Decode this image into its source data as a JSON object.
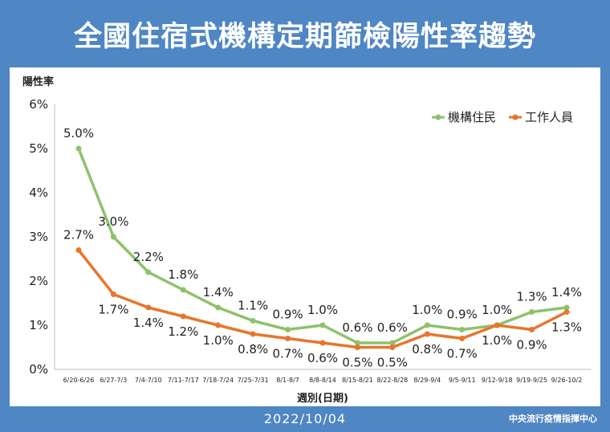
{
  "title": "全國住宿式機構定期篩檢陽性率趨勢",
  "footer": {
    "date": "2022/10/04",
    "source": "中央流行疫情指揮中心"
  },
  "colors": {
    "header": "#4f86c4",
    "resident": "#8dc26b",
    "staff": "#e8752b"
  },
  "chart_data": {
    "type": "line",
    "ylabel": "陽性率",
    "xlabel": "週別(日期)",
    "ylim": [
      0,
      6
    ],
    "yticks": [
      "0%",
      "1%",
      "2%",
      "3%",
      "4%",
      "5%",
      "6%"
    ],
    "categories": [
      "6/20-6/26",
      "6/27-7/3",
      "7/4-7/10",
      "7/11-7/17",
      "7/18-7/24",
      "7/25-7/31",
      "8/1-8/7",
      "8/8-8/14",
      "8/15-8/21",
      "8/22-8/28",
      "8/29-9/4",
      "9/5-9/11",
      "9/12-9/18",
      "9/19-9/25",
      "9/26-10/2"
    ],
    "legend_position": "top-right",
    "series": [
      {
        "name": "機構住民",
        "color": "#8dc26b",
        "values": [
          5.0,
          3.0,
          2.2,
          1.8,
          1.4,
          1.1,
          0.9,
          1.0,
          0.6,
          0.6,
          1.0,
          0.9,
          1.0,
          1.3,
          1.4
        ],
        "labels": [
          "5.0%",
          "3.0%",
          "2.2%",
          "1.8%",
          "1.4%",
          "1.1%",
          "0.9%",
          "1.0%",
          "0.6%",
          "0.6%",
          "1.0%",
          "0.9%",
          "1.0%",
          "1.3%",
          "1.4%"
        ]
      },
      {
        "name": "工作人員",
        "color": "#e8752b",
        "values": [
          2.7,
          1.7,
          1.4,
          1.2,
          1.0,
          0.8,
          0.7,
          0.6,
          0.5,
          0.5,
          0.8,
          0.7,
          1.0,
          0.9,
          1.3
        ],
        "labels": [
          "2.7%",
          "1.7%",
          "1.4%",
          "1.2%",
          "1.0%",
          "0.8%",
          "0.7%",
          "0.6%",
          "0.5%",
          "0.5%",
          "0.8%",
          "0.7%",
          "1.0%",
          "0.9%",
          "1.3%"
        ]
      }
    ]
  }
}
